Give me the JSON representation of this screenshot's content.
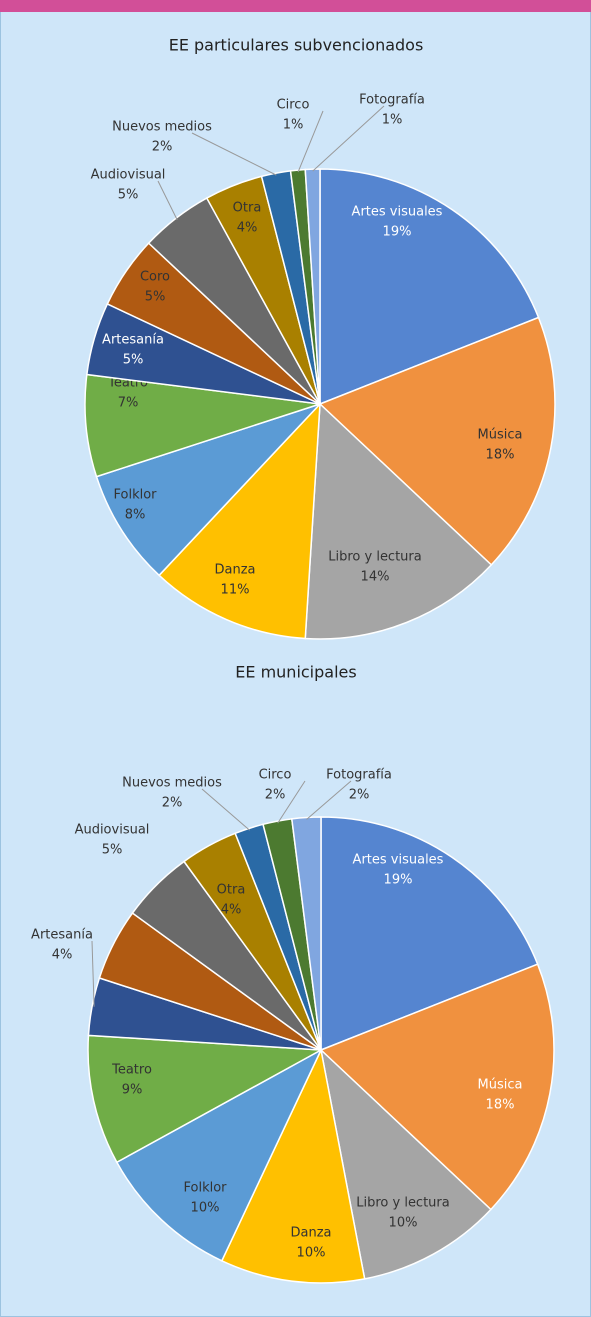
{
  "chart_data": [
    {
      "type": "pie",
      "title": "EE particulares subvencionados",
      "categories": [
        "Artes visuales",
        "Música",
        "Libro y lectura",
        "Danza",
        "Folklor",
        "Teatro",
        "Artesanía",
        "Coro",
        "Audiovisual",
        "Otra",
        "Nuevos medios",
        "Circo",
        "Fotografía"
      ],
      "values": [
        19,
        18,
        14,
        11,
        8,
        7,
        5,
        5,
        5,
        4,
        2,
        1,
        1
      ],
      "value_labels": [
        "19%",
        "18%",
        "14%",
        "11%",
        "8%",
        "7%",
        "5%",
        "5%",
        "5%",
        "4%",
        "2%",
        "1%",
        "1%"
      ],
      "colors": [
        "#5585d0",
        "#f0913f",
        "#a5a5a5",
        "#ffc000",
        "#5b9bd5",
        "#70ad47",
        "#2f5191",
        "#b05a12",
        "#6a6a6a",
        "#a98000",
        "#2a6aa6",
        "#4c7a30",
        "#80a6e0"
      ]
    },
    {
      "type": "pie",
      "title": "EE municipales",
      "categories": [
        "Artes visuales",
        "Música",
        "Libro y lectura",
        "Danza",
        "Folklor",
        "Teatro",
        "Artesanía",
        null,
        "Audiovisual",
        "Otra",
        "Nuevos medios",
        "Circo",
        "Fotografía"
      ],
      "values": [
        19,
        18,
        10,
        10,
        10,
        9,
        4,
        5,
        5,
        4,
        2,
        2,
        2
      ],
      "value_labels": [
        "19%",
        "18%",
        "10%",
        "10%",
        "10%",
        "9%",
        "4%",
        null,
        "5%",
        "4%",
        "2%",
        "2%",
        "2%"
      ],
      "colors": [
        "#5585d0",
        "#f0913f",
        "#a5a5a5",
        "#ffc000",
        "#5b9bd5",
        "#70ad47",
        "#2f5191",
        "#b05a12",
        "#6a6a6a",
        "#a98000",
        "#2a6aa6",
        "#4c7a30",
        "#80a6e0"
      ]
    }
  ]
}
